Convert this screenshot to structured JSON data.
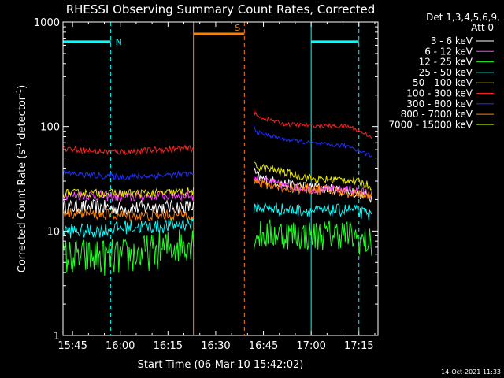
{
  "chart_data": {
    "type": "line",
    "title": "RHESSI Observing Summary Count Rates, Corrected",
    "xlabel": "Start Time (06-Mar-10 15:42:02)",
    "ylabel_main": "Corrected Count Rate (s",
    "ylabel_sup1": "-1",
    "ylabel_mid": " detector",
    "ylabel_sup2": "-1",
    "ylabel_end": ")",
    "yscale": "log",
    "ylim": [
      1,
      1000
    ],
    "xlim_min": [
      942,
      1041
    ],
    "x_ticks": [
      {
        "min": 945,
        "label": "15:45"
      },
      {
        "min": 960,
        "label": "16:00"
      },
      {
        "min": 975,
        "label": "16:15"
      },
      {
        "min": 990,
        "label": "16:30"
      },
      {
        "min": 1005,
        "label": "16:45"
      },
      {
        "min": 1020,
        "label": "17:00"
      },
      {
        "min": 1035,
        "label": "17:15"
      }
    ],
    "y_ticks": [
      {
        "value": 1,
        "label": "1"
      },
      {
        "value": 10,
        "label": "10"
      },
      {
        "value": 100,
        "label": "100"
      },
      {
        "value": 1000,
        "label": "1000"
      }
    ],
    "legend": {
      "header1": "Det 1,3,4,5,6,9,",
      "header2": "Att 0",
      "placement": "top-right outside"
    },
    "series": [
      {
        "name": "3 - 6 keV",
        "color": "#ffffff",
        "segments": [
          {
            "x": [
              942,
              952,
              962,
              972,
              983
            ],
            "y": [
              17,
              17,
              16.5,
              17,
              17
            ],
            "noise": 0.07
          },
          {
            "x": [
              1002,
              1004,
              1012,
              1022,
              1032,
              1039
            ],
            "y": [
              37,
              32,
              28,
              26,
              24,
              21
            ],
            "noise": 0.05
          }
        ]
      },
      {
        "name": "6 - 12 keV",
        "color": "#ff3cff",
        "segments": [
          {
            "x": [
              942,
              952,
              962,
              972,
              983
            ],
            "y": [
              22,
              22,
              21,
              22,
              22
            ],
            "noise": 0.05
          },
          {
            "x": [
              1002,
              1004,
              1012,
              1022,
              1032,
              1039
            ],
            "y": [
              32,
              31,
              27,
              25,
              25,
              23
            ],
            "noise": 0.04
          }
        ]
      },
      {
        "name": "12 - 25 keV",
        "color": "#22ff22",
        "segments": [
          {
            "x": [
              942,
              950,
              960,
              970,
              983
            ],
            "y": [
              5.6,
              5.6,
              5.6,
              6.3,
              8
            ],
            "noise": 0.18
          },
          {
            "x": [
              1002,
              1010,
              1020,
              1030,
              1039
            ],
            "y": [
              9,
              9.5,
              9,
              9.5,
              7.5
            ],
            "noise": 0.15
          }
        ]
      },
      {
        "name": "25 - 50 keV",
        "color": "#00ffff",
        "segments": [
          {
            "x": [
              942,
              952,
              962,
              972,
              983
            ],
            "y": [
              10,
              10,
              11,
              11,
              12
            ],
            "noise": 0.07
          },
          {
            "x": [
              1002,
              1012,
              1022,
              1032,
              1039
            ],
            "y": [
              17,
              16,
              15.5,
              16,
              14
            ],
            "noise": 0.06
          }
        ]
      },
      {
        "name": "50 - 100 keV",
        "color": "#e8e800",
        "segments": [
          {
            "x": [
              942,
              952,
              962,
              972,
              983
            ],
            "y": [
              23,
              23,
              23,
              23,
              24
            ],
            "noise": 0.04
          },
          {
            "x": [
              1002,
              1012,
              1022,
              1032,
              1039
            ],
            "y": [
              42,
              36,
              31,
              31,
              27
            ],
            "noise": 0.04
          }
        ]
      },
      {
        "name": "100 - 300 keV",
        "color": "#ff2020",
        "segments": [
          {
            "x": [
              942,
              952,
              962,
              972,
              983
            ],
            "y": [
              62,
              58,
              57,
              60,
              62
            ],
            "noise": 0.03
          },
          {
            "x": [
              1002,
              1003,
              1012,
              1022,
              1032,
              1039
            ],
            "y": [
              140,
              125,
              105,
              102,
              100,
              80
            ],
            "noise": 0.02
          }
        ]
      },
      {
        "name": "300 - 800 keV",
        "color": "#2030ff",
        "segments": [
          {
            "x": [
              942,
              952,
              962,
              972,
              983
            ],
            "y": [
              36,
              34,
              33,
              34,
              35
            ],
            "noise": 0.03
          },
          {
            "x": [
              1002,
              1003,
              1012,
              1022,
              1032,
              1039
            ],
            "y": [
              100,
              88,
              75,
              68,
              65,
              52
            ],
            "noise": 0.02
          }
        ]
      },
      {
        "name": "800 - 7000 keV",
        "color": "#ff8000",
        "segments": [
          {
            "x": [
              942,
              952,
              962,
              972,
              983
            ],
            "y": [
              15,
              14.5,
              14,
              14,
              14.5
            ],
            "noise": 0.05
          },
          {
            "x": [
              1002,
              1012,
              1022,
              1032,
              1039
            ],
            "y": [
              29,
              26,
              25,
              23,
              22
            ],
            "noise": 0.05
          }
        ]
      },
      {
        "name": "7000 - 15000 keV",
        "color": "#80a000",
        "segments": []
      }
    ],
    "annotations": [
      {
        "type": "bar",
        "label": "N",
        "color": "#00ffff",
        "x0": 942,
        "x1": 957,
        "y": 650
      },
      {
        "type": "bar",
        "label": "",
        "color": "#00ffff",
        "x0": 1020,
        "x1": 1035,
        "y": 650
      },
      {
        "type": "bar",
        "label": "S",
        "color": "#ff8000",
        "x0": 983,
        "x1": 999,
        "y": 770
      },
      {
        "type": "vline",
        "color": "#00ffff",
        "x": 942,
        "style": "solid"
      },
      {
        "type": "vline",
        "color": "#00ffff",
        "x": 957,
        "style": "dashed"
      },
      {
        "type": "vline",
        "color": "#ff8000",
        "x": 983,
        "style": "solid"
      },
      {
        "type": "vline",
        "color": "#ff8000",
        "x": 999,
        "style": "dashed"
      },
      {
        "type": "vline",
        "color": "#00ffff",
        "x": 1020,
        "style": "solid"
      },
      {
        "type": "vline",
        "color": "#00ffff",
        "x": 1035,
        "style": "dashed"
      }
    ],
    "grid": false
  },
  "footer": {
    "timestamp": "14-Oct-2021 11:33"
  }
}
